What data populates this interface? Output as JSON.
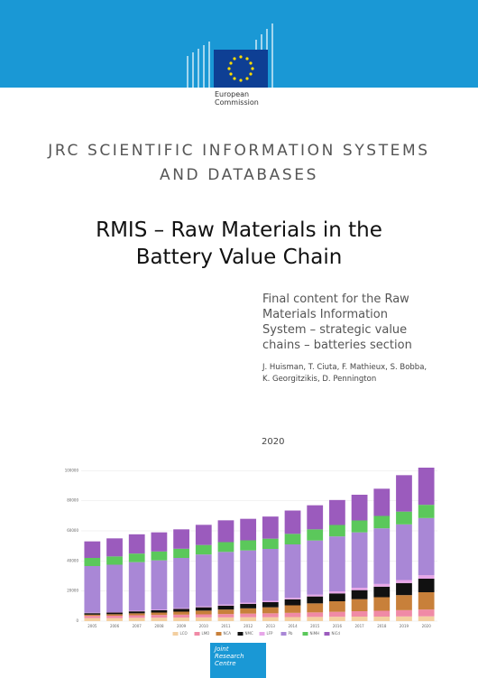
{
  "header": {
    "org": [
      "European",
      "Commission"
    ]
  },
  "series_title": [
    "JRC SCIENTIFIC INFORMATION SYSTEMS",
    "AND DATABASES"
  ],
  "title": [
    "RMIS – Raw Materials in the",
    "Battery Value Chain"
  ],
  "subtitle": [
    "Final content for the Raw",
    "Materials Information",
    "System – strategic value",
    "chains – batteries section"
  ],
  "authors": [
    "J. Huisman, T. Ciuta, F. Mathieux, S. Bobba,",
    "K. Georgitzikis, D. Pennington"
  ],
  "year": "2020",
  "chart_data": {
    "type": "stacked-bar",
    "categories": [
      "2005",
      "2006",
      "2007",
      "2008",
      "2009",
      "2010",
      "2011",
      "2012",
      "2013",
      "2014",
      "2015",
      "2016",
      "2017",
      "2018",
      "2019",
      "2020"
    ],
    "ylim": [
      0,
      105000
    ],
    "yticks": [
      0,
      20000,
      40000,
      60000,
      80000,
      100000
    ],
    "grid": true,
    "series": [
      {
        "name": "LCO",
        "color": "#f3cfa0",
        "values": [
          2000,
          2000,
          2200,
          2300,
          2400,
          2500,
          2500,
          2600,
          2600,
          2700,
          2800,
          2900,
          3000,
          3000,
          3100,
          3200
        ]
      },
      {
        "name": "LMO",
        "color": "#f08aa6",
        "values": [
          1500,
          1600,
          1700,
          1800,
          1900,
          2000,
          2200,
          2400,
          2600,
          2800,
          3000,
          3300,
          3600,
          3900,
          4200,
          4500
        ]
      },
      {
        "name": "NCA",
        "color": "#c8803a",
        "values": [
          800,
          1000,
          1300,
          1600,
          2000,
          2500,
          3000,
          3500,
          4000,
          5000,
          6000,
          7000,
          8000,
          9000,
          10000,
          11500
        ]
      },
      {
        "name": "NMC",
        "color": "#111111",
        "values": [
          1000,
          1100,
          1300,
          1500,
          1800,
          2200,
          2600,
          3000,
          3400,
          4000,
          4600,
          5200,
          6000,
          7000,
          8000,
          9000
        ]
      },
      {
        "name": "LFP",
        "color": "#e7a6e8",
        "values": [
          300,
          300,
          400,
          400,
          500,
          600,
          700,
          800,
          900,
          1000,
          1200,
          1400,
          1600,
          1800,
          2000,
          2300
        ]
      },
      {
        "name": "Pb",
        "color": "#a987d6",
        "values": [
          31000,
          31500,
          32300,
          32800,
          33400,
          34500,
          35000,
          34700,
          34500,
          35500,
          36000,
          36500,
          36800,
          37000,
          37000,
          38000
        ]
      },
      {
        "name": "NiMH",
        "color": "#5bc85b",
        "values": [
          5400,
          5500,
          5700,
          5900,
          6100,
          6300,
          6500,
          6700,
          6800,
          7000,
          7400,
          7600,
          7900,
          8200,
          8500,
          8800
        ]
      },
      {
        "name": "NiCd",
        "color": "#9b5bbd",
        "values": [
          11000,
          12000,
          12800,
          12700,
          12900,
          13400,
          14500,
          14300,
          14700,
          15500,
          16000,
          16600,
          17100,
          18100,
          24200,
          24700
        ]
      }
    ]
  },
  "footer": {
    "logo": [
      "Joint",
      "Research",
      "Centre"
    ]
  }
}
